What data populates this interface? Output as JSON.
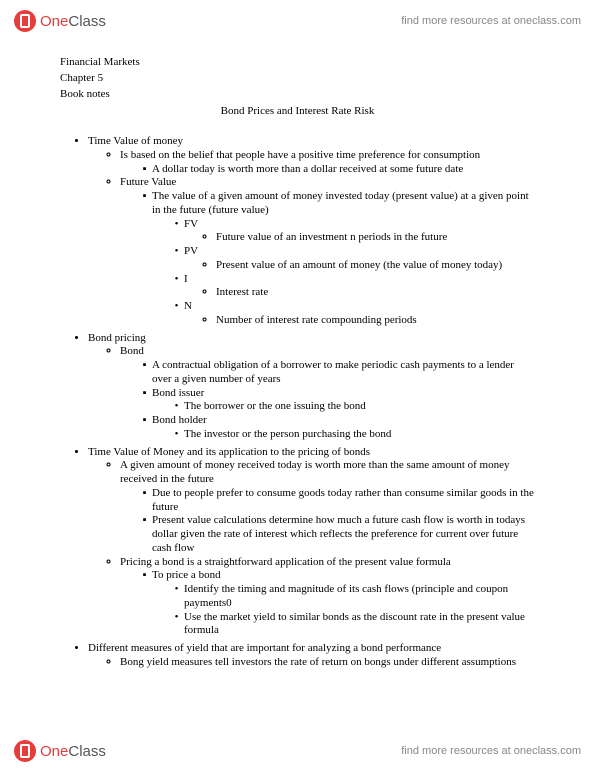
{
  "brand": {
    "one": "One",
    "class": "Class"
  },
  "header_link": "find more resources at oneclass.com",
  "footer_link": "find more resources at oneclass.com",
  "doc": {
    "line1": "Financial Markets",
    "line2": "Chapter 5",
    "line3": "Book notes",
    "title": "Bond Prices and Interest Rate Risk"
  },
  "s1": {
    "h": "Time Value of money",
    "a": "Is based on the belief that people have a positive time preference for consumption",
    "a1": "A dollar today is worth more than a dollar received at some future date",
    "b": "Future Value",
    "b1": "The value of a given amount of money invested today (present value) at a given point in the future (future value)",
    "fv": "FV",
    "fv1": "Future value of an investment n periods in the future",
    "pv": "PV",
    "pv1": "Present value of an amount of money (the value of money today)",
    "i": "I",
    "i1": "Interest rate",
    "n": "N",
    "n1": "Number of interest rate compounding periods"
  },
  "s2": {
    "h": "Bond pricing",
    "a": "Bond",
    "a1": "A contractual obligation of a borrower to make periodic cash payments to a lender over a given number of years",
    "a2": "Bond issuer",
    "a2a": "The borrower or the one issuing the bond",
    "a3": "Bond holder",
    "a3a": "The investor or the person purchasing the bond"
  },
  "s3": {
    "h": "Time Value of Money and its application to the pricing of bonds",
    "a": "A given amount of money received today is worth more than the same amount of money received in the future",
    "a1": "Due to people prefer to consume goods today rather than consume similar goods in the future",
    "a2": "Present value calculations determine how much a future cash flow is worth in todays dollar given the rate of interest which reflects the preference for current over future cash flow",
    "b": "Pricing a bond is a straightforward application of the present value formula",
    "b1": "To price a bond",
    "b1a": "Identify the timing and magnitude of its cash flows (principle and coupon payments0",
    "b1b": "Use the market yield to similar bonds as the discount rate in the present value formula"
  },
  "s4": {
    "h": "Different measures of yield that are important for analyzing a bond performance",
    "a": "Bong yield measures tell investors the rate of return on bongs under different assumptions"
  }
}
